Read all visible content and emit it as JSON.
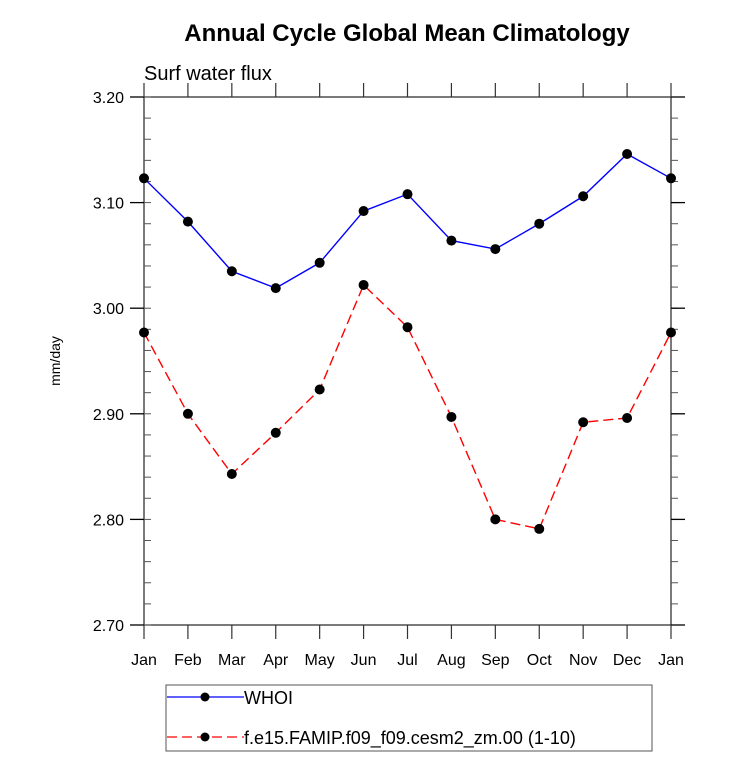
{
  "chart_data": {
    "type": "line",
    "title": "Annual Cycle Global Mean Climatology",
    "subtitle": "Surf water flux",
    "xlabel": "",
    "ylabel": "mm/day",
    "categories": [
      "Jan",
      "Feb",
      "Mar",
      "Apr",
      "May",
      "Jun",
      "Jul",
      "Aug",
      "Sep",
      "Oct",
      "Nov",
      "Dec",
      "Jan"
    ],
    "ylim": [
      2.7,
      3.2
    ],
    "yticks": [
      2.7,
      2.8,
      2.9,
      3.0,
      3.1,
      3.2
    ],
    "ytick_labels": [
      "2.70",
      "2.80",
      "2.90",
      "3.00",
      "3.10",
      "3.20"
    ],
    "y_minor_step": 0.02,
    "grid": false,
    "legend_position": "bottom-center",
    "series": [
      {
        "name": "WHOI",
        "color": "#0000ff",
        "line_style": "solid",
        "marker": "filled-circle",
        "marker_color": "#000000",
        "values": [
          3.123,
          3.082,
          3.035,
          3.019,
          3.043,
          3.092,
          3.108,
          3.064,
          3.056,
          3.08,
          3.106,
          3.146,
          3.123
        ]
      },
      {
        "name": "f.e15.FAMIP.f09_f09.cesm2_zm.00 (1-10)",
        "color": "#ff0000",
        "line_style": "dashed",
        "marker": "filled-circle",
        "marker_color": "#000000",
        "values": [
          2.977,
          2.9,
          2.843,
          2.882,
          2.923,
          3.022,
          2.982,
          2.897,
          2.8,
          2.791,
          2.892,
          2.896,
          2.977
        ]
      }
    ]
  }
}
